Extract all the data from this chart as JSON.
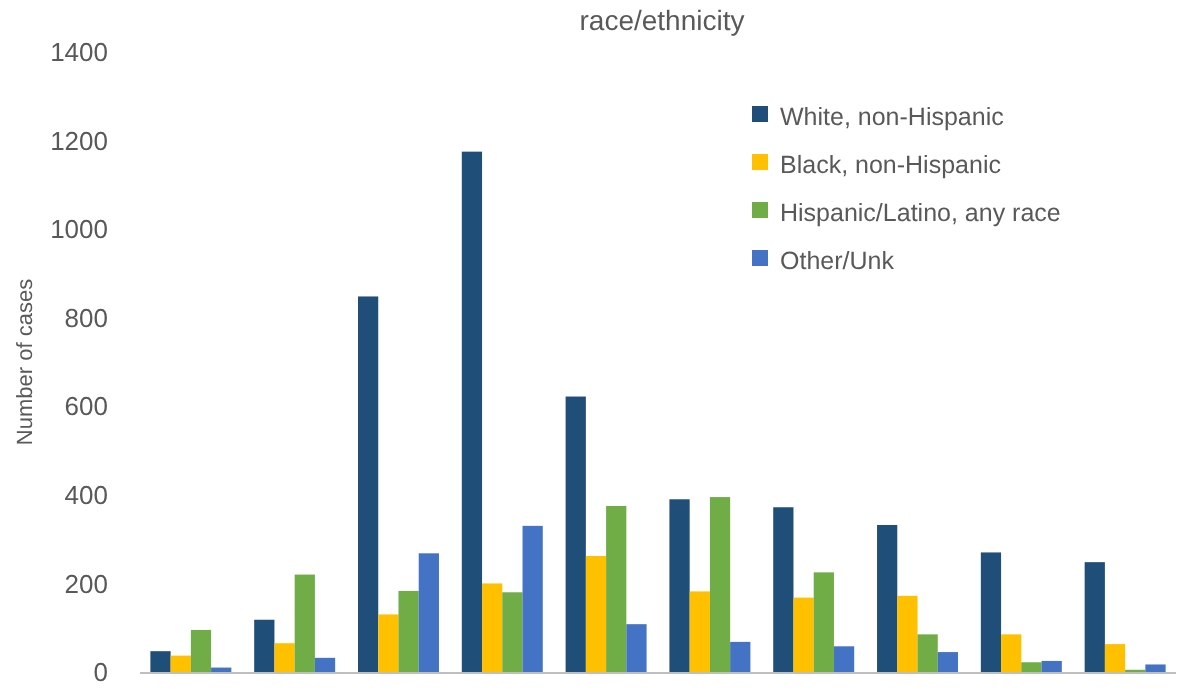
{
  "chart_data": {
    "type": "bar",
    "title": "race/ethnicity",
    "ylabel": "Number of cases",
    "categories": [
      null,
      null,
      null,
      null,
      null,
      null,
      null,
      null,
      null,
      null
    ],
    "series": [
      {
        "name": "White, non-Hispanic",
        "color": "#1f4e79",
        "values": [
          47,
          118,
          848,
          1175,
          622,
          390,
          372,
          332,
          270,
          248
        ]
      },
      {
        "name": "Black, non-Hispanic",
        "color": "#ffc000",
        "values": [
          37,
          65,
          130,
          200,
          262,
          182,
          168,
          172,
          85,
          63
        ]
      },
      {
        "name": "Hispanic/Latino, any race",
        "color": "#70ad47",
        "values": [
          95,
          220,
          183,
          180,
          375,
          395,
          225,
          85,
          22,
          5
        ]
      },
      {
        "name": "Other/Unk",
        "color": "#4472c4",
        "values": [
          10,
          32,
          268,
          330,
          108,
          68,
          58,
          45,
          25,
          17
        ]
      }
    ],
    "ylim": [
      0,
      1400
    ],
    "yticks": [
      0,
      200,
      400,
      600,
      800,
      1000,
      1200,
      1400
    ],
    "grid": false,
    "legend": "top right"
  }
}
